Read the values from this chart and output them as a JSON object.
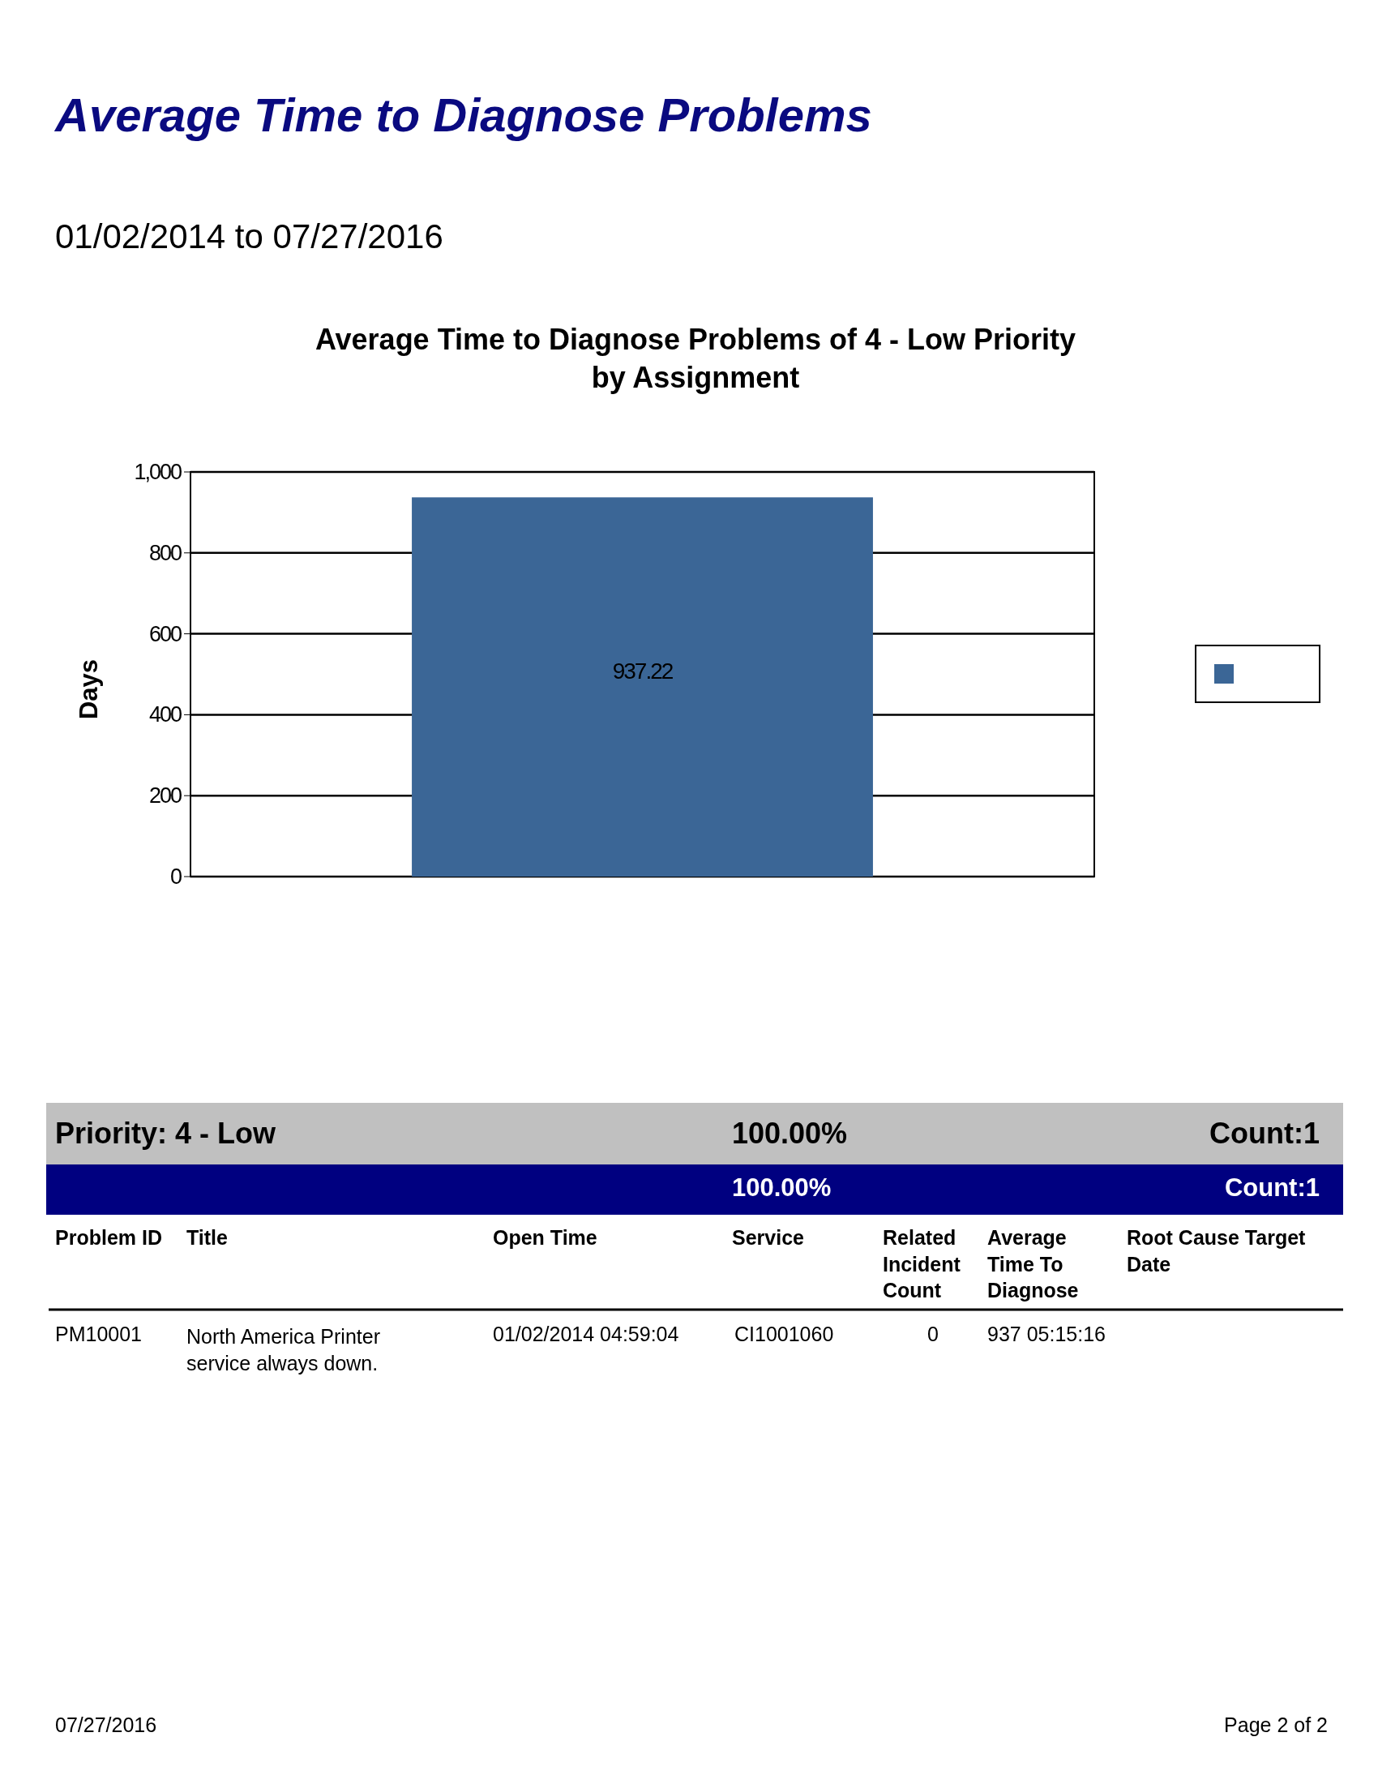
{
  "chart_data": {
    "type": "bar",
    "title": "Average Time to Diagnose Problems",
    "subtitle": "01/02/2014 to 07/27/2016",
    "ylabel": "Days",
    "annotations": [
      "Average Time to Diagnose Problems of 4 - Low Priority by Assignment",
      "Priority: 4 - Low",
      "100.00%",
      "Count:1",
      "100.00%",
      "Count:1",
      "Problem ID",
      "Title",
      "Open Time",
      "Service",
      "Related Incident Count",
      "Average Time To Diagnose",
      "Root Cause Target Date",
      "PM10001",
      "North America Printer service always down.",
      "01/02/2014  04:59:04",
      "CI1001060",
      "0",
      "937 05:15:16",
      "07/27/2016",
      "Page 2 of 2"
    ],
    "categories": [
      null
    ],
    "series": [
      {
        "color": "#3b6696",
        "values": [
          937.22
        ]
      }
    ],
    "ylim": [
      0,
      1000
    ],
    "yticks": [
      0,
      200,
      400,
      600,
      800,
      {
        "value": 1000,
        "label": "1,000"
      }
    ],
    "grid": "y",
    "data_labels": true
  }
}
